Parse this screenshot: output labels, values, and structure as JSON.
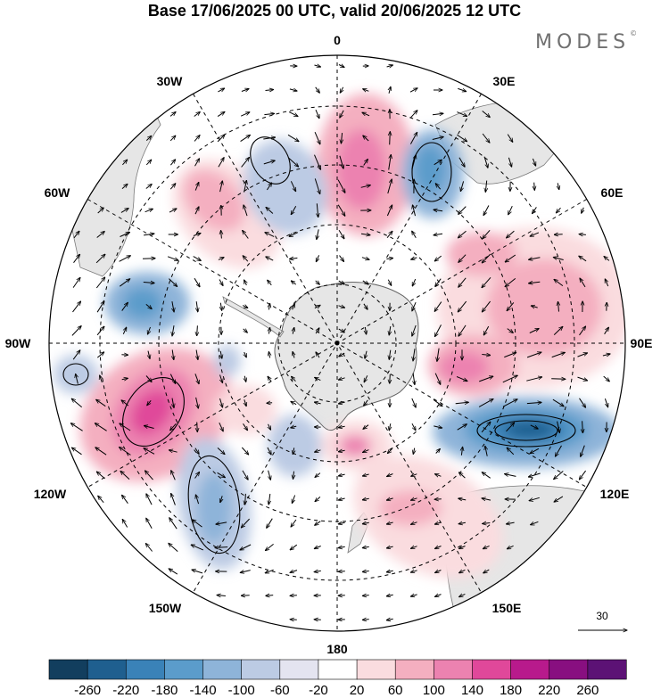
{
  "title": "Base 17/06/2025 00 UTC, valid 20/06/2025 12 UTC",
  "brand": "MODES",
  "brand_mark": "©",
  "longitude_labels": {
    "lon_0": "0",
    "lon_30e": "30E",
    "lon_60e": "60E",
    "lon_90e": "90E",
    "lon_120e": "120E",
    "lon_150e": "150E",
    "lon_180": "180",
    "lon_150w": "150W",
    "lon_120w": "120W",
    "lon_90w": "90W",
    "lon_60w": "60W",
    "lon_30w": "30W"
  },
  "vector_reference": {
    "label": "30"
  },
  "colorbar": {
    "labels": [
      "-260",
      "-220",
      "-180",
      "-140",
      "-100",
      "-60",
      "-20",
      "20",
      "60",
      "100",
      "140",
      "180",
      "220",
      "260"
    ],
    "colors": [
      "#123e5e",
      "#1f5f8f",
      "#3a82b8",
      "#5b9ccb",
      "#8eb4d9",
      "#bccbe4",
      "#e4e4f0",
      "#ffffff",
      "#fadcdf",
      "#f4afc0",
      "#ec82b0",
      "#e0489a",
      "#b81a8c",
      "#880f80",
      "#5c1275"
    ]
  },
  "colors": {
    "land": "#e6e6e6",
    "coast": "#707070",
    "grid": "#000000"
  }
}
